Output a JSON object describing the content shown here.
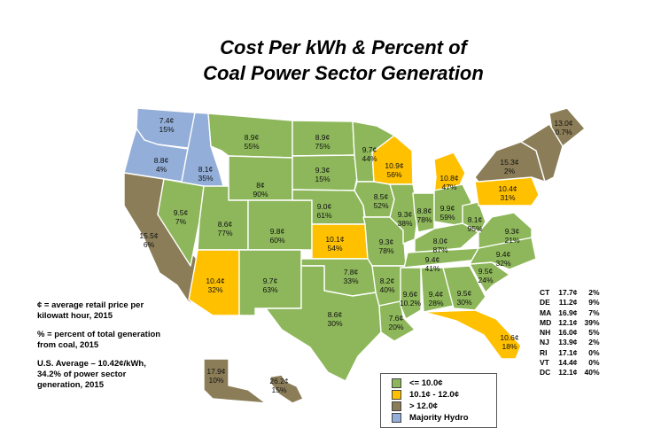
{
  "title": {
    "line1": "Cost Per kWh & Percent of",
    "line2": "Coal Power Sector Generation"
  },
  "colors": {
    "low": "#8db75a",
    "mid": "#ffc000",
    "high": "#8b7d58",
    "hydro": "#92aed9"
  },
  "legend": {
    "items": [
      {
        "label": "<= 10.0¢",
        "category": "low"
      },
      {
        "label": "10.1¢ - 12.0¢",
        "category": "mid"
      },
      {
        "label": "> 12.0¢",
        "category": "high"
      },
      {
        "label": "Majority Hydro",
        "category": "hydro"
      }
    ]
  },
  "notes": {
    "cents": "¢ = average retail price per kilowatt hour, 2015",
    "percent": "% = percent of total generation from coal, 2015",
    "average": "U.S. Average – 10.42¢/kWh, 34.2% of power sector generation, 2015"
  },
  "small_states": [
    {
      "state": "CT",
      "price": "17.7¢",
      "coal": "2%"
    },
    {
      "state": "DE",
      "price": "11.2¢",
      "coal": "9%"
    },
    {
      "state": "MA",
      "price": "16.9¢",
      "coal": "7%"
    },
    {
      "state": "MD",
      "price": "12.1¢",
      "coal": "39%"
    },
    {
      "state": "NH",
      "price": "16.0¢",
      "coal": "5%"
    },
    {
      "state": "NJ",
      "price": "13.9¢",
      "coal": "2%"
    },
    {
      "state": "RI",
      "price": "17.1¢",
      "coal": "0%"
    },
    {
      "state": "VT",
      "price": "14.4¢",
      "coal": "0%"
    },
    {
      "state": "DC",
      "price": "12.1¢",
      "coal": "40%"
    }
  ],
  "states": [
    {
      "state": "WA",
      "price": "7.4¢",
      "coal": "15%",
      "category": "hydro"
    },
    {
      "state": "OR",
      "price": "8.8¢",
      "coal": "4%",
      "category": "hydro"
    },
    {
      "state": "ID",
      "price": "8.1¢",
      "coal": "35%",
      "category": "hydro"
    },
    {
      "state": "CA",
      "price": "15.5¢",
      "coal": "6%",
      "category": "high"
    },
    {
      "state": "NV",
      "price": "9.5¢",
      "coal": "7%",
      "category": "low"
    },
    {
      "state": "MT",
      "price": "8.9¢",
      "coal": "55%",
      "category": "low"
    },
    {
      "state": "WY",
      "price": "8¢",
      "coal": "90%",
      "category": "low"
    },
    {
      "state": "UT",
      "price": "8.6¢",
      "coal": "77%",
      "category": "low"
    },
    {
      "state": "AZ",
      "price": "10.4¢",
      "coal": "32%",
      "category": "mid"
    },
    {
      "state": "CO",
      "price": "9.8¢",
      "coal": "60%",
      "category": "low"
    },
    {
      "state": "NM",
      "price": "9.7¢",
      "coal": "63%",
      "category": "low"
    },
    {
      "state": "ND",
      "price": "8.9¢",
      "coal": "75%",
      "category": "low"
    },
    {
      "state": "SD",
      "price": "9.3¢",
      "coal": "15%",
      "category": "low"
    },
    {
      "state": "NE",
      "price": "9.0¢",
      "coal": "61%",
      "category": "low"
    },
    {
      "state": "KS",
      "price": "10.1¢",
      "coal": "54%",
      "category": "mid"
    },
    {
      "state": "OK",
      "price": "7.8¢",
      "coal": "33%",
      "category": "low"
    },
    {
      "state": "TX",
      "price": "8.6¢",
      "coal": "30%",
      "category": "low"
    },
    {
      "state": "MN",
      "price": "9.7¢",
      "coal": "44%",
      "category": "low"
    },
    {
      "state": "IA",
      "price": "8.5¢",
      "coal": "52%",
      "category": "low"
    },
    {
      "state": "MO",
      "price": "9.3¢",
      "coal": "78%",
      "category": "low"
    },
    {
      "state": "AR",
      "price": "8.2¢",
      "coal": "40%",
      "category": "low"
    },
    {
      "state": "LA",
      "price": "7.6¢",
      "coal": "20%",
      "category": "low"
    },
    {
      "state": "WI",
      "price": "10.9¢",
      "coal": "56%",
      "category": "mid"
    },
    {
      "state": "IL",
      "price": "9.3¢",
      "coal": "38%",
      "category": "low"
    },
    {
      "state": "MI",
      "price": "10.8¢",
      "coal": "47%",
      "category": "mid"
    },
    {
      "state": "IN",
      "price": "8.8¢",
      "coal": "78%",
      "category": "low"
    },
    {
      "state": "OH",
      "price": "9.9¢",
      "coal": "59%",
      "category": "low"
    },
    {
      "state": "KY",
      "price": "8.0¢",
      "coal": "87%",
      "category": "low"
    },
    {
      "state": "TN",
      "price": "9.4¢",
      "coal": "41%",
      "category": "low"
    },
    {
      "state": "MS",
      "price": "9.6¢",
      "coal": "10.2%",
      "category": "low"
    },
    {
      "state": "AL",
      "price": "9.4¢",
      "coal": "28%",
      "category": "low"
    },
    {
      "state": "GA",
      "price": "9.5¢",
      "coal": "30%",
      "category": "low"
    },
    {
      "state": "FL",
      "price": "10.6¢",
      "coal": "18%",
      "category": "mid"
    },
    {
      "state": "SC",
      "price": "9.5¢",
      "coal": "24%",
      "category": "low"
    },
    {
      "state": "NC",
      "price": "9.4¢",
      "coal": "32%",
      "category": "low"
    },
    {
      "state": "VA",
      "price": "9.3¢",
      "coal": "21%",
      "category": "low"
    },
    {
      "state": "WV",
      "price": "8.1¢",
      "coal": "95%",
      "category": "low"
    },
    {
      "state": "PA",
      "price": "10.4¢",
      "coal": "31%",
      "category": "mid"
    },
    {
      "state": "NY",
      "price": "15.3¢",
      "coal": "2%",
      "category": "high"
    },
    {
      "state": "ME",
      "price": "13.0¢",
      "coal": "0.7%",
      "category": "high"
    },
    {
      "state": "AK",
      "price": "17.9¢",
      "coal": "10%",
      "category": "high"
    },
    {
      "state": "HI",
      "price": "26.2¢",
      "coal": "15%",
      "category": "high"
    }
  ]
}
